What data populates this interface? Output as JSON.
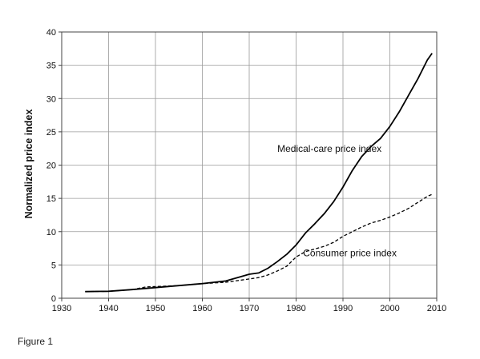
{
  "chart_data": {
    "type": "line",
    "title": "",
    "xlabel": "",
    "ylabel": "Normalized price index",
    "xlim": [
      1930,
      2010
    ],
    "ylim": [
      0,
      40
    ],
    "xticks": [
      1930,
      1940,
      1950,
      1960,
      1970,
      1980,
      1990,
      2000,
      2010
    ],
    "yticks": [
      0,
      5,
      10,
      15,
      20,
      25,
      30,
      35,
      40
    ],
    "grid": true,
    "legend": "none",
    "series": [
      {
        "name": "Medical-care price index",
        "style": "solid",
        "color": "#000000",
        "x": [
          1935,
          1940,
          1945,
          1950,
          1955,
          1960,
          1965,
          1968,
          1970,
          1972,
          1974,
          1976,
          1978,
          1980,
          1982,
          1984,
          1986,
          1988,
          1990,
          1992,
          1994,
          1996,
          1998,
          2000,
          2002,
          2004,
          2006,
          2008,
          2009
        ],
        "y": [
          1.0,
          1.05,
          1.3,
          1.6,
          1.9,
          2.2,
          2.6,
          3.2,
          3.6,
          3.8,
          4.5,
          5.5,
          6.6,
          8.0,
          9.8,
          11.2,
          12.7,
          14.5,
          16.7,
          19.2,
          21.3,
          22.8,
          24.0,
          25.8,
          28.0,
          30.5,
          33.0,
          35.8,
          36.8
        ]
      },
      {
        "name": "Consumer price index",
        "style": "dashed",
        "color": "#000000",
        "x": [
          1935,
          1940,
          1945,
          1948,
          1950,
          1955,
          1960,
          1965,
          1970,
          1972,
          1974,
          1976,
          1978,
          1980,
          1982,
          1984,
          1986,
          1988,
          1990,
          1992,
          1994,
          1996,
          1998,
          2000,
          2002,
          2004,
          2006,
          2008,
          2009
        ],
        "y": [
          1.0,
          1.05,
          1.3,
          1.7,
          1.75,
          1.9,
          2.2,
          2.4,
          2.9,
          3.1,
          3.5,
          4.1,
          4.8,
          6.2,
          7.0,
          7.4,
          7.8,
          8.4,
          9.3,
          10.0,
          10.7,
          11.3,
          11.7,
          12.2,
          12.8,
          13.5,
          14.4,
          15.3,
          15.6
        ]
      }
    ],
    "annotations": [
      {
        "text": "Medical-care price index",
        "x": 1976,
        "y": 22.0
      },
      {
        "text": "Consumer price index",
        "x": 1981.5,
        "y": 6.3
      }
    ]
  },
  "caption": "Figure 1"
}
